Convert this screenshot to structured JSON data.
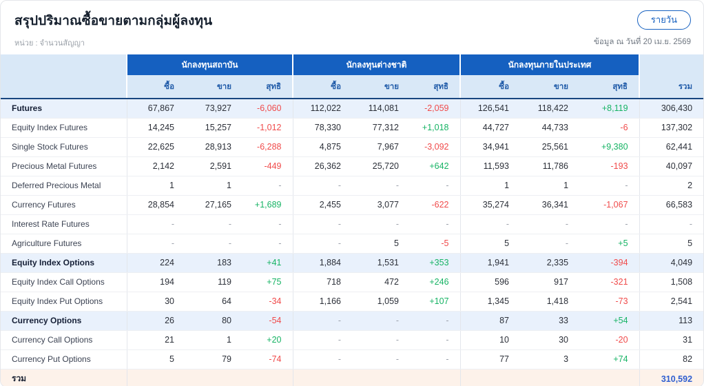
{
  "header": {
    "title": "สรุปปริมาณซื้อขายตามกลุ่มผู้ลงทุน",
    "unit_label": "หน่วย : จำนวนสัญญา",
    "daily_button": "รายวัน",
    "as_of": "ข้อมูล ณ วันที่ 20 เม.ย. 2569"
  },
  "table": {
    "groups": [
      "นักลงทุนสถาบัน",
      "นักลงทุนต่างชาติ",
      "นักลงทุนภายในประเทศ"
    ],
    "sub_columns": [
      "ซื้อ",
      "ขาย",
      "สุทธิ"
    ],
    "total_column": "รวม",
    "rows": [
      {
        "label": "Futures",
        "type": "section",
        "cells": [
          "67,867",
          "73,927",
          "-6,060",
          "112,022",
          "114,081",
          "-2,059",
          "126,541",
          "118,422",
          "+8,119"
        ],
        "total": "306,430"
      },
      {
        "label": "Equity Index Futures",
        "type": "item",
        "cells": [
          "14,245",
          "15,257",
          "-1,012",
          "78,330",
          "77,312",
          "+1,018",
          "44,727",
          "44,733",
          "-6"
        ],
        "total": "137,302"
      },
      {
        "label": "Single Stock Futures",
        "type": "item",
        "cells": [
          "22,625",
          "28,913",
          "-6,288",
          "4,875",
          "7,967",
          "-3,092",
          "34,941",
          "25,561",
          "+9,380"
        ],
        "total": "62,441"
      },
      {
        "label": "Precious Metal Futures",
        "type": "item",
        "cells": [
          "2,142",
          "2,591",
          "-449",
          "26,362",
          "25,720",
          "+642",
          "11,593",
          "11,786",
          "-193"
        ],
        "total": "40,097"
      },
      {
        "label": "Deferred Precious Metal",
        "type": "item",
        "cells": [
          "1",
          "1",
          "-",
          "-",
          "-",
          "-",
          "1",
          "1",
          "-"
        ],
        "total": "2"
      },
      {
        "label": "Currency Futures",
        "type": "item",
        "cells": [
          "28,854",
          "27,165",
          "+1,689",
          "2,455",
          "3,077",
          "-622",
          "35,274",
          "36,341",
          "-1,067"
        ],
        "total": "66,583"
      },
      {
        "label": "Interest Rate Futures",
        "type": "item",
        "cells": [
          "-",
          "-",
          "-",
          "-",
          "-",
          "-",
          "-",
          "-",
          "-"
        ],
        "total": "-"
      },
      {
        "label": "Agriculture Futures",
        "type": "item",
        "cells": [
          "-",
          "-",
          "-",
          "-",
          "5",
          "-5",
          "5",
          "-",
          "+5"
        ],
        "total": "5"
      },
      {
        "label": "Equity Index Options",
        "type": "section",
        "cells": [
          "224",
          "183",
          "+41",
          "1,884",
          "1,531",
          "+353",
          "1,941",
          "2,335",
          "-394"
        ],
        "total": "4,049"
      },
      {
        "label": "Equity Index Call Options",
        "type": "item",
        "cells": [
          "194",
          "119",
          "+75",
          "718",
          "472",
          "+246",
          "596",
          "917",
          "-321"
        ],
        "total": "1,508"
      },
      {
        "label": "Equity Index Put Options",
        "type": "item",
        "cells": [
          "30",
          "64",
          "-34",
          "1,166",
          "1,059",
          "+107",
          "1,345",
          "1,418",
          "-73"
        ],
        "total": "2,541"
      },
      {
        "label": "Currency Options",
        "type": "section",
        "cells": [
          "26",
          "80",
          "-54",
          "-",
          "-",
          "-",
          "87",
          "33",
          "+54"
        ],
        "total": "113"
      },
      {
        "label": "Currency Call Options",
        "type": "item",
        "cells": [
          "21",
          "1",
          "+20",
          "-",
          "-",
          "-",
          "10",
          "30",
          "-20"
        ],
        "total": "31"
      },
      {
        "label": "Currency Put Options",
        "type": "item",
        "cells": [
          "5",
          "79",
          "-74",
          "-",
          "-",
          "-",
          "77",
          "3",
          "+74"
        ],
        "total": "82"
      }
    ],
    "footer": {
      "label": "รวม",
      "cells": [
        "",
        "",
        "",
        "",
        "",
        "",
        "",
        "",
        ""
      ],
      "total": "310,592"
    }
  },
  "colors": {
    "header_blue": "#1560c0",
    "header_light_blue": "#d9e8f7",
    "section_row_blue": "#e9f1fc",
    "footer_peach": "#fdf2ea",
    "positive_green": "#16b364",
    "negative_red": "#f04a4a",
    "grand_total_blue": "#2e5ed0"
  }
}
